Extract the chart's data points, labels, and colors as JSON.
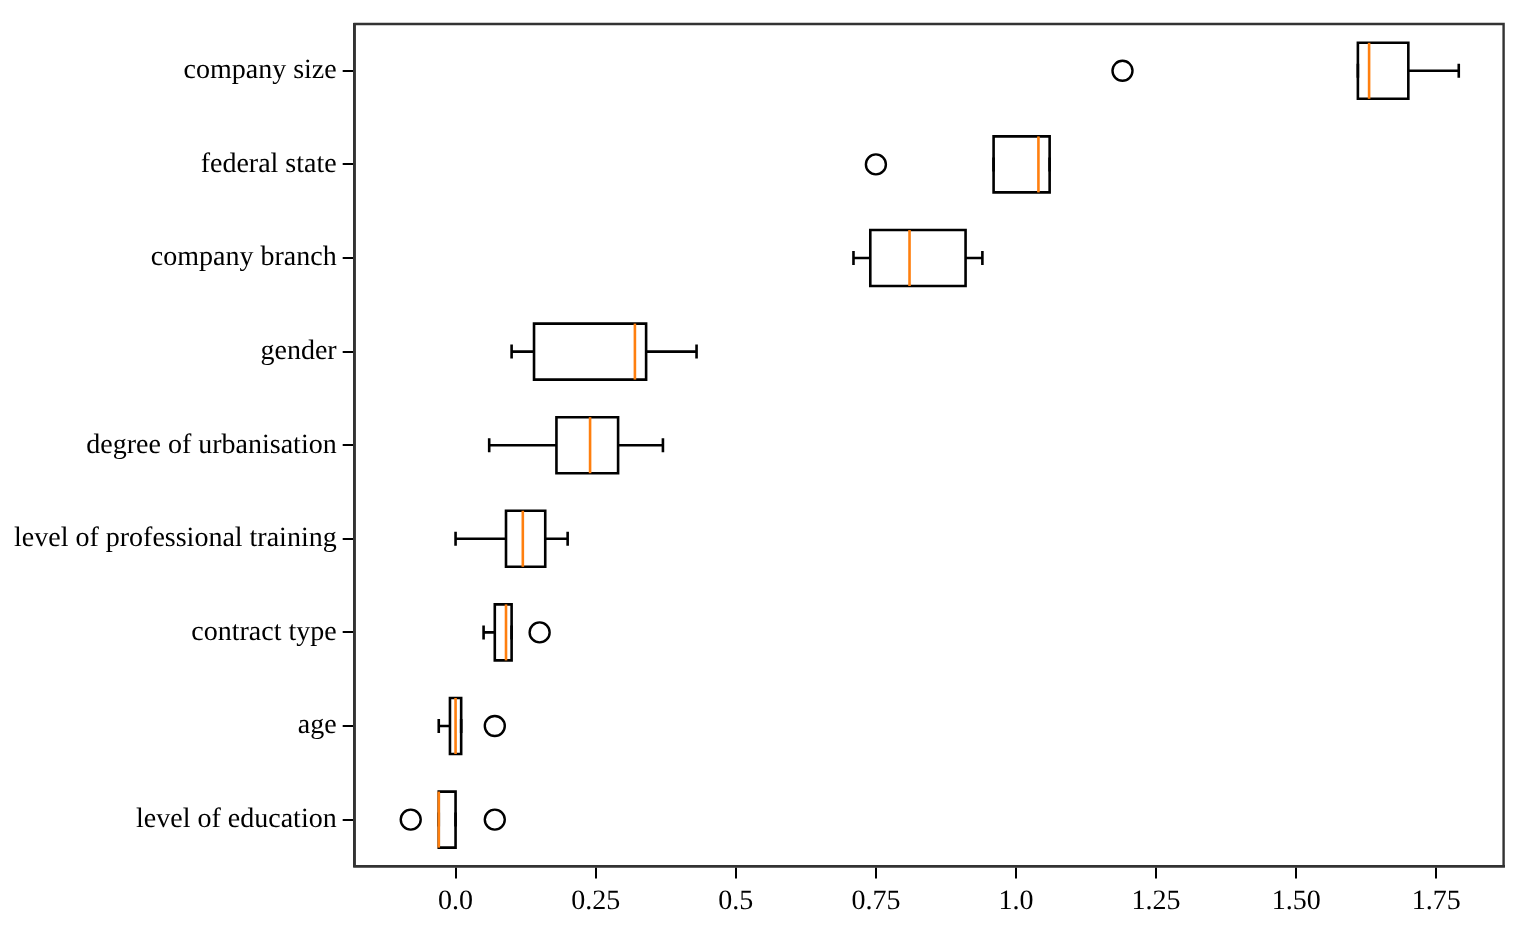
{
  "chart_data": {
    "type": "box",
    "orientation": "horizontal",
    "categories": [
      "company size",
      "federal state",
      "company branch",
      "gender",
      "degree of urbanisation",
      "level of professional training",
      "contract type",
      "age",
      "level of education"
    ],
    "boxes": [
      {
        "low": 1.61,
        "q1": 1.61,
        "median": 1.63,
        "q3": 1.7,
        "high": 1.79,
        "outliers": [
          1.19
        ]
      },
      {
        "low": 0.96,
        "q1": 0.96,
        "median": 1.04,
        "q3": 1.06,
        "high": 1.06,
        "outliers": [
          0.75
        ]
      },
      {
        "low": 0.71,
        "q1": 0.74,
        "median": 0.81,
        "q3": 0.91,
        "high": 0.94
      },
      {
        "low": 0.1,
        "q1": 0.14,
        "median": 0.32,
        "q3": 0.34,
        "high": 0.43
      },
      {
        "low": 0.06,
        "q1": 0.18,
        "median": 0.24,
        "q3": 0.29,
        "high": 0.37
      },
      {
        "low": 0.0,
        "q1": 0.09,
        "median": 0.12,
        "q3": 0.16,
        "high": 0.2
      },
      {
        "low": 0.05,
        "q1": 0.07,
        "median": 0.09,
        "q3": 0.1,
        "high": 0.1,
        "outliers": [
          0.15
        ]
      },
      {
        "low": -0.03,
        "q1": -0.01,
        "median": 0.0,
        "q3": 0.01,
        "high": 0.01,
        "outliers": [
          0.07
        ]
      },
      {
        "low": -0.03,
        "q1": -0.03,
        "median": -0.03,
        "q3": 0.0,
        "high": 0.0,
        "outliers": [
          -0.08,
          0.07
        ]
      }
    ],
    "color": "#000000",
    "xlim": [
      -0.18,
      1.87
    ],
    "xticks": [
      {
        "value": 0,
        "label": "0.0"
      },
      0.25,
      0.5,
      0.75,
      {
        "value": 1,
        "label": "1.0"
      },
      1.25,
      {
        "value": 1.5,
        "label": "1.50"
      },
      1.75
    ],
    "grid": false,
    "legend": false,
    "marker": "circle"
  }
}
